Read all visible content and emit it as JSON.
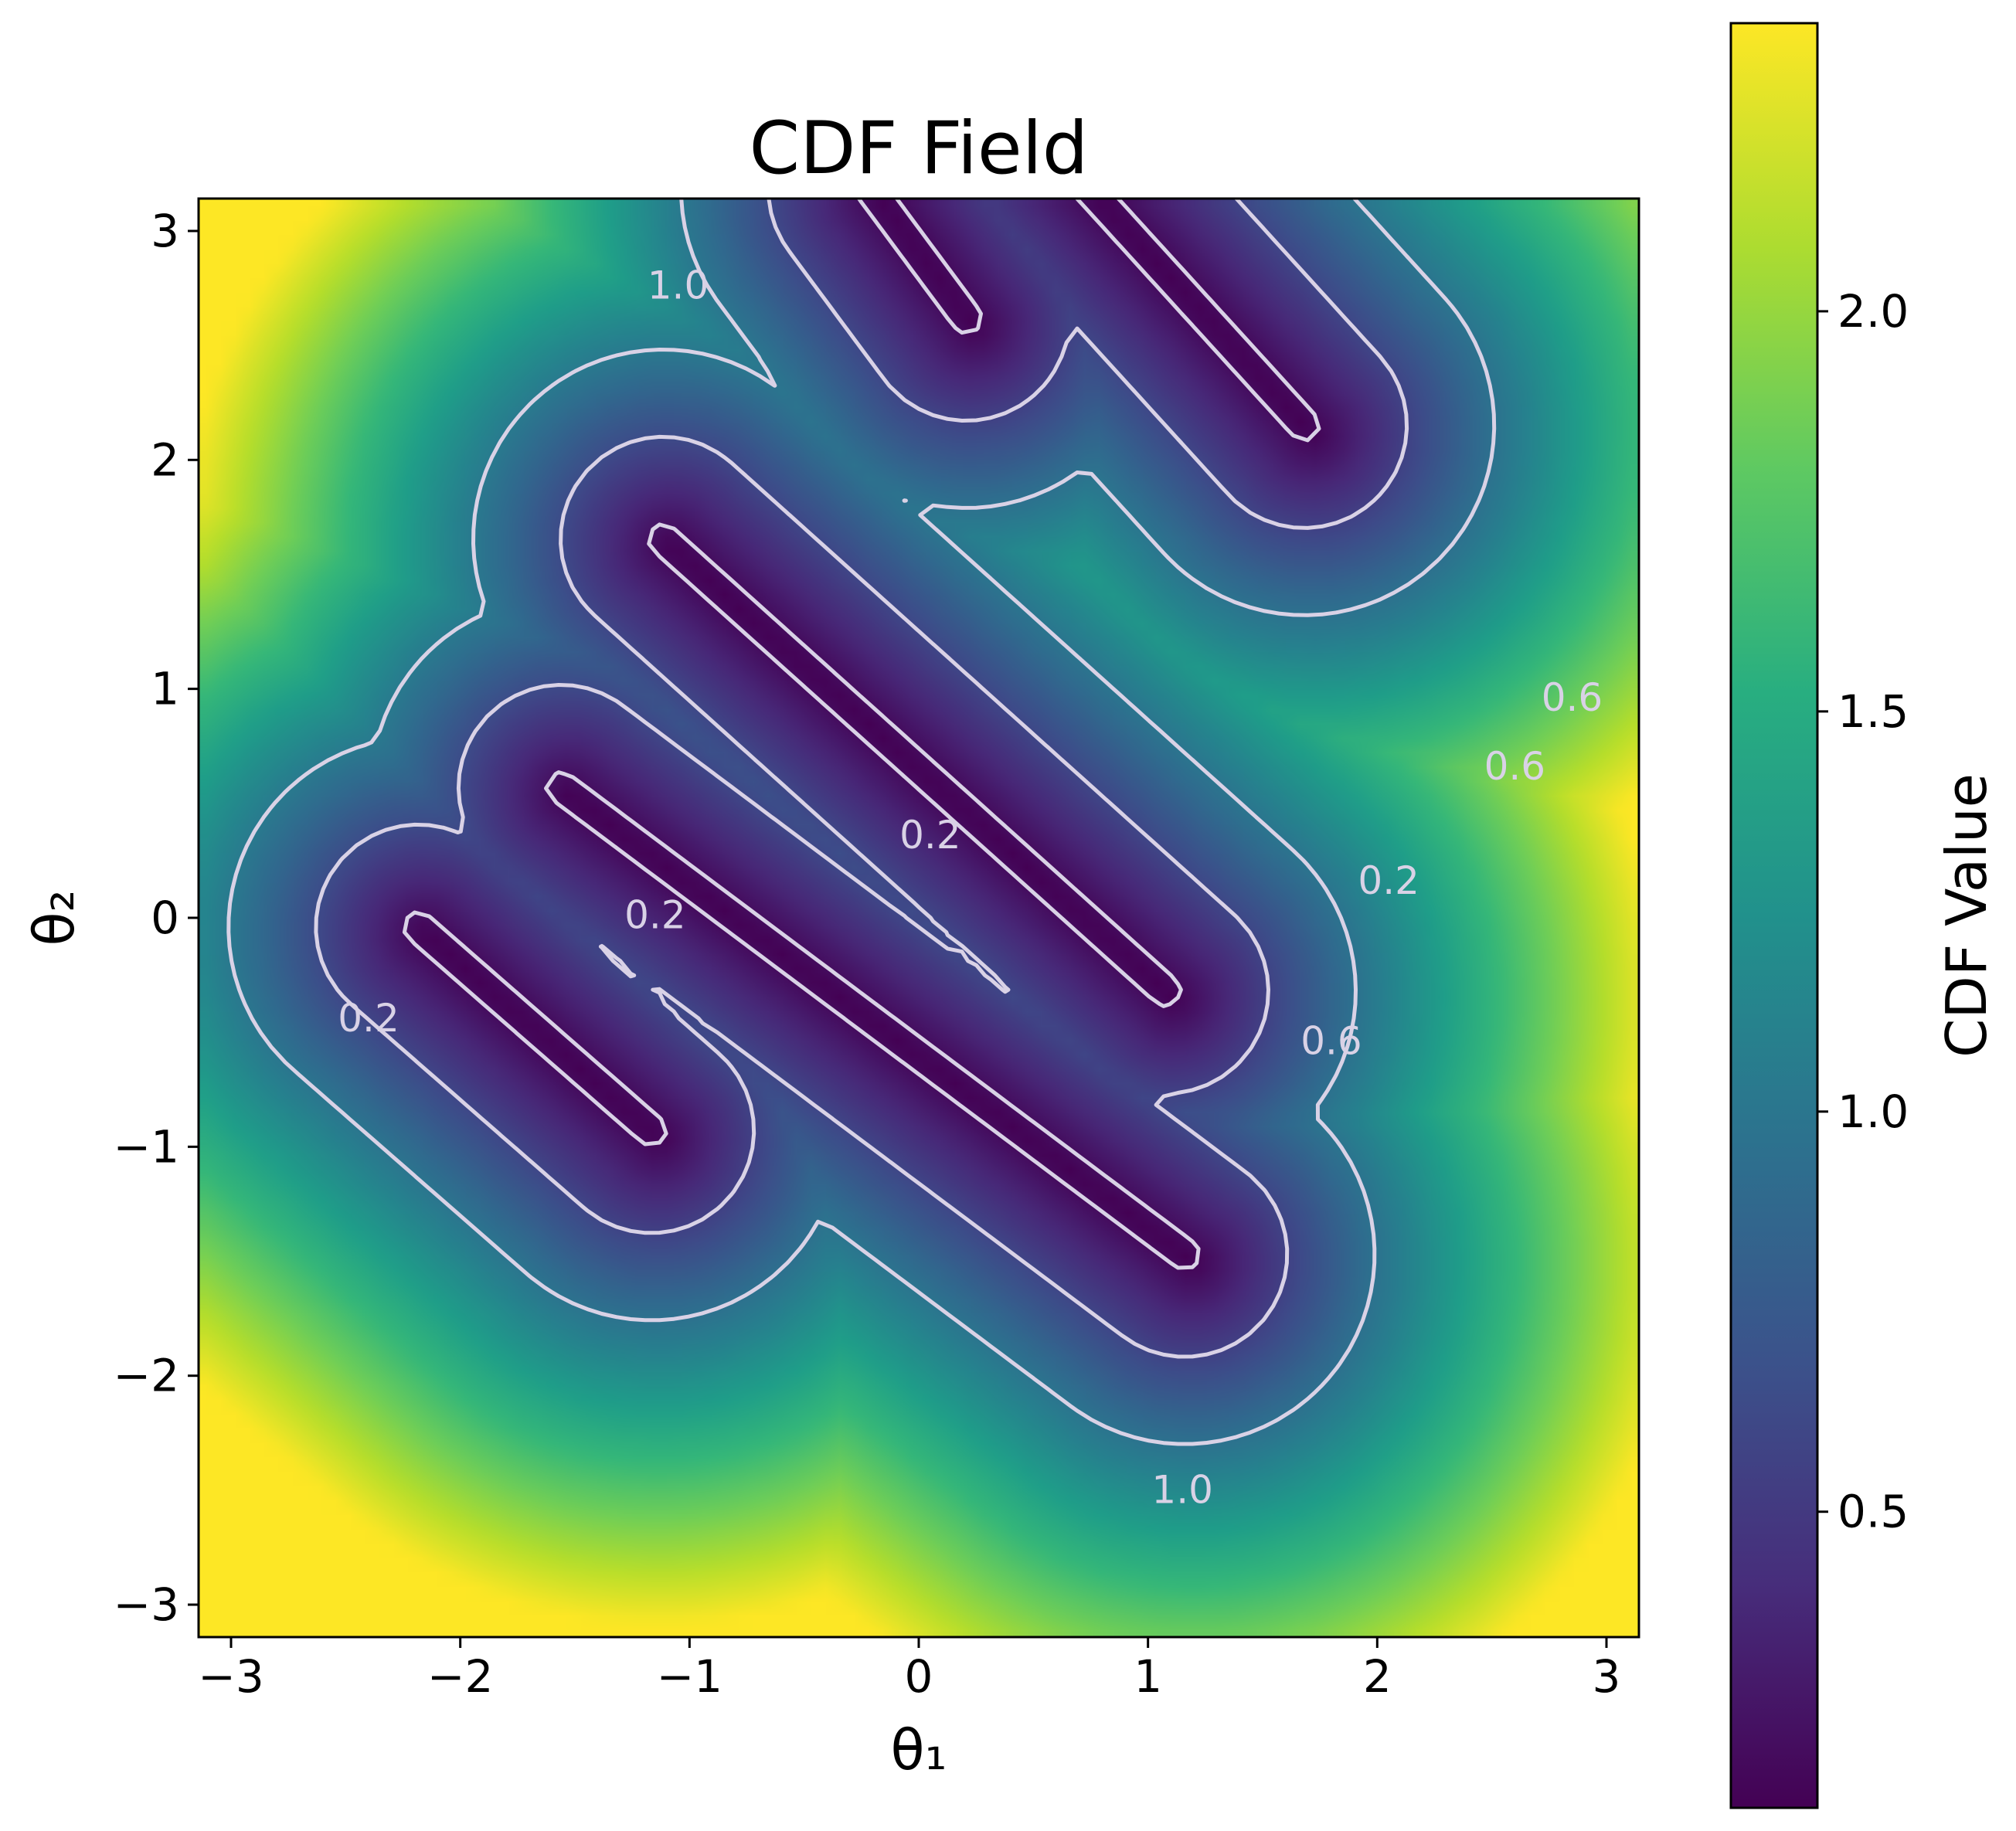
{
  "chart_data": {
    "type": "heatmap",
    "title": "CDF Field",
    "xlabel": "θ₁",
    "ylabel": "θ₂",
    "xlim": [
      -3.14159,
      3.14159
    ],
    "ylim": [
      -3.14159,
      3.14159
    ],
    "x_ticks": [
      -3,
      -2,
      -1,
      0,
      1,
      2,
      3
    ],
    "y_ticks": [
      -3,
      -2,
      -1,
      0,
      1,
      2,
      3
    ],
    "x_tick_labels": [
      "−3",
      "−2",
      "−1",
      "0",
      "1",
      "2",
      "3"
    ],
    "y_tick_labels": [
      "−3",
      "−2",
      "−1",
      "0",
      "1",
      "2",
      "3"
    ],
    "colormap": "viridis",
    "colorbar": {
      "label": "CDF Value",
      "range": [
        0.13,
        2.36
      ],
      "ticks": [
        0.5,
        1.0,
        1.5,
        2.0
      ],
      "tick_labels": [
        "0.5",
        "1.0",
        "1.5",
        "2.0"
      ]
    },
    "field_model": {
      "obstacle_bands": [
        {
          "slope": -0.875,
          "intercept": -1.95,
          "t_range": [
            -2.9,
            -1.55
          ]
        },
        {
          "slope": -0.75,
          "intercept": -0.6,
          "t_range": [
            -1.95,
            1.45
          ]
        },
        {
          "slope": -0.9,
          "intercept": 0.65,
          "t_range": [
            -1.5,
            1.45
          ]
        },
        {
          "slope": -1.35,
          "intercept": 2.9,
          "t_range": [
            -0.35,
            0.35
          ]
        },
        {
          "slope": -1.1,
          "intercept": 4.0,
          "t_range": [
            0.75,
            2.5
          ]
        }
      ],
      "background": {
        "min": 0.13,
        "max": 2.36,
        "yellow_peaks": [
          [
            1.9,
            3.14
          ],
          [
            -3.14,
            -3.14
          ],
          [
            3.14,
            -3.14
          ]
        ]
      }
    },
    "contour_levels": [
      0.2,
      0.6,
      1.0
    ],
    "contour_labels": [
      {
        "text": "1.0",
        "x": -1.05,
        "y": 2.75
      },
      {
        "text": "1.0",
        "x": 1.15,
        "y": -2.51
      },
      {
        "text": "0.2",
        "x": -2.4,
        "y": -0.45
      },
      {
        "text": "0.2",
        "x": -1.15,
        "y": 0.0
      },
      {
        "text": "0.2",
        "x": 0.05,
        "y": 0.35
      },
      {
        "text": "0.2",
        "x": 2.05,
        "y": 0.15
      },
      {
        "text": "0.6",
        "x": 1.8,
        "y": -0.55
      },
      {
        "text": "0.6",
        "x": 2.6,
        "y": 0.65
      },
      {
        "text": "0.6",
        "x": 2.85,
        "y": 0.95
      }
    ]
  }
}
